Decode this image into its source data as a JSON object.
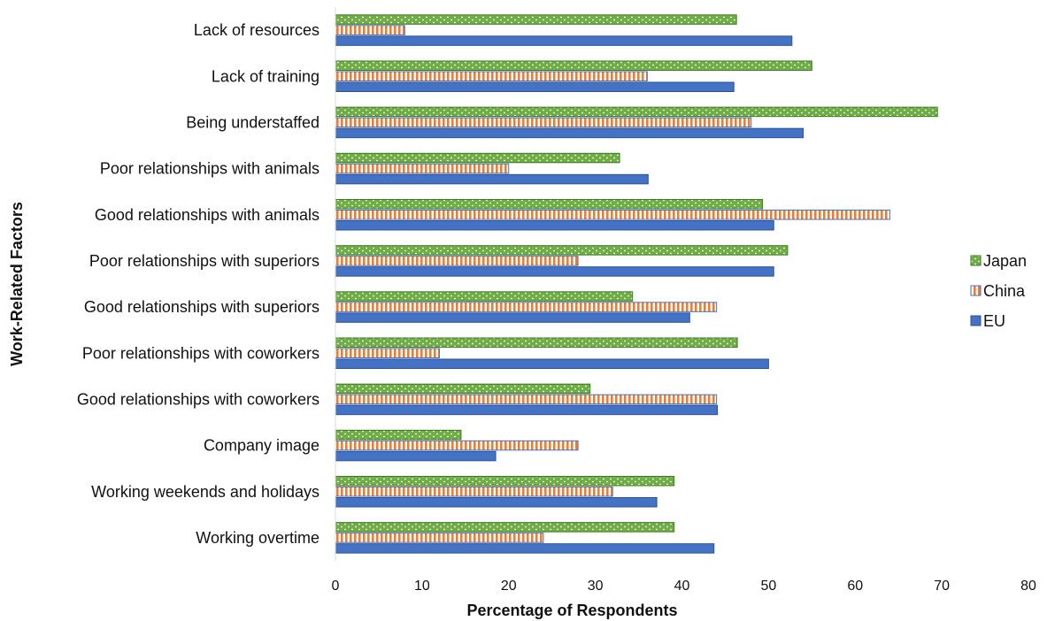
{
  "chart_data": {
    "type": "bar",
    "orientation": "horizontal",
    "title": "",
    "xlabel": "Percentage of Respondents",
    "ylabel": "Work-Related Factors",
    "xlim": [
      0,
      80
    ],
    "x_ticks": [
      0,
      10,
      20,
      30,
      40,
      50,
      60,
      70,
      80
    ],
    "grid": false,
    "legend_position": "right",
    "categories": [
      "Lack of resources",
      "Lack of training",
      "Being understaffed",
      "Poor relationships with animals",
      "Good relationships with animals",
      "Poor relationships with superiors",
      "Good relationships with superiors",
      "Poor relationships with coworkers",
      "Good relationships with coworkers",
      "Company image",
      "Working weekends and holidays",
      "Working overtime"
    ],
    "series": [
      {
        "name": "Japan",
        "color": "#70ad47",
        "pattern": "dots",
        "values": [
          46.3,
          55.0,
          69.5,
          32.8,
          49.3,
          52.2,
          34.3,
          46.4,
          29.4,
          14.5,
          39.1,
          39.1
        ]
      },
      {
        "name": "China",
        "color": "#ed7d31",
        "pattern": "vertical-stripes",
        "values": [
          8.0,
          36.0,
          48.0,
          20.0,
          64.0,
          28.0,
          44.0,
          12.0,
          44.0,
          28.0,
          32.0,
          24.0
        ]
      },
      {
        "name": "EU",
        "color": "#4472c4",
        "pattern": "solid",
        "values": [
          52.7,
          46.0,
          54.0,
          36.1,
          50.6,
          50.6,
          40.9,
          50.0,
          44.1,
          18.5,
          37.1,
          43.7
        ]
      }
    ]
  }
}
